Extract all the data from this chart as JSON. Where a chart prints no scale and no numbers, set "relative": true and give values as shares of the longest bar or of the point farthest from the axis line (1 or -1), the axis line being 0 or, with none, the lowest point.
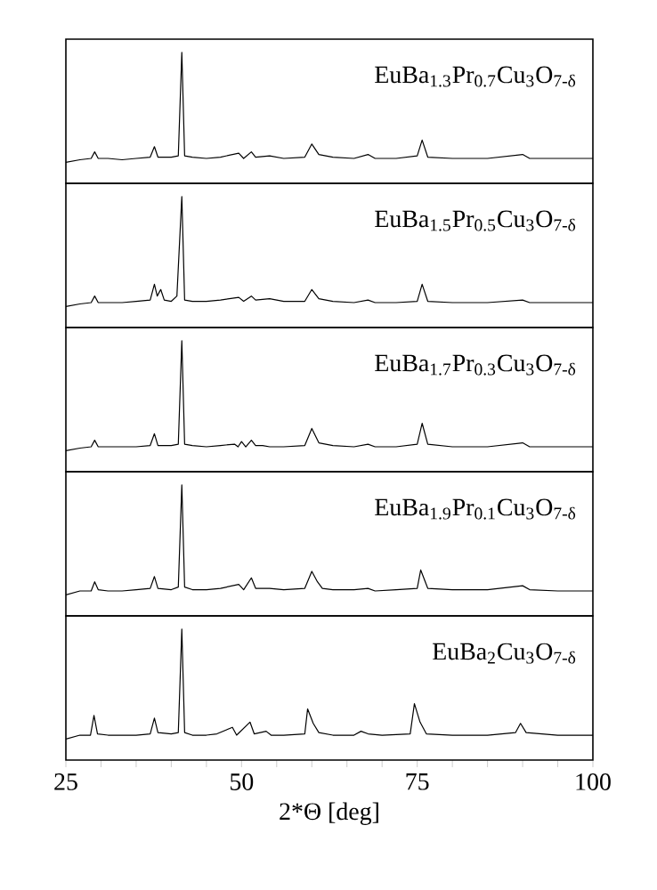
{
  "chart_data": [
    {
      "type": "line",
      "relative": true,
      "xlim": [
        25,
        100
      ],
      "tick_labels": false,
      "annotations": [
        "EuBa$_{1.3}$Pr$_{0.7}$Cu$_{3}$O$_{7-δ}$"
      ],
      "x": [
        25,
        27,
        28.6,
        29.1,
        29.6,
        31,
        33,
        35,
        37,
        37.6,
        38.1,
        40,
        41.0,
        41.5,
        41.9,
        43,
        45,
        47,
        49.6,
        50.3,
        51.4,
        52,
        54,
        56,
        59,
        60,
        61,
        63,
        66,
        68,
        69,
        72,
        75,
        75.7,
        76.5,
        80,
        85,
        90,
        91,
        95,
        100
      ],
      "values": [
        0.16,
        0.18,
        0.19,
        0.24,
        0.19,
        0.19,
        0.18,
        0.19,
        0.2,
        0.28,
        0.2,
        0.2,
        0.21,
        1,
        0.21,
        0.2,
        0.19,
        0.2,
        0.23,
        0.19,
        0.24,
        0.2,
        0.21,
        0.19,
        0.2,
        0.3,
        0.22,
        0.2,
        0.19,
        0.22,
        0.19,
        0.19,
        0.21,
        0.33,
        0.2,
        0.19,
        0.19,
        0.22,
        0.19,
        0.19,
        0.19
      ]
    },
    {
      "type": "line",
      "relative": true,
      "xlim": [
        25,
        100
      ],
      "tick_labels": false,
      "annotations": [
        "EuBa$_{1.5}$Pr$_{0.5}$Cu$_{3}$O$_{7-δ}$"
      ],
      "x": [
        25,
        27,
        28.6,
        29.1,
        29.6,
        31,
        33,
        35,
        37,
        37.6,
        38.0,
        38.5,
        39.0,
        40,
        40.8,
        41.5,
        41.9,
        43,
        45,
        47,
        49.6,
        50.3,
        51.4,
        52,
        54,
        56,
        59,
        60,
        61,
        63,
        66,
        68,
        69,
        72,
        75,
        75.7,
        76.5,
        80,
        85,
        90,
        91,
        95,
        100
      ],
      "values": [
        0.16,
        0.18,
        0.19,
        0.24,
        0.19,
        0.19,
        0.19,
        0.2,
        0.21,
        0.33,
        0.24,
        0.29,
        0.21,
        0.2,
        0.24,
        1,
        0.21,
        0.2,
        0.2,
        0.21,
        0.23,
        0.2,
        0.24,
        0.21,
        0.22,
        0.2,
        0.2,
        0.29,
        0.22,
        0.2,
        0.19,
        0.21,
        0.19,
        0.19,
        0.2,
        0.33,
        0.2,
        0.19,
        0.19,
        0.21,
        0.19,
        0.19,
        0.19
      ]
    },
    {
      "type": "line",
      "relative": true,
      "xlim": [
        25,
        100
      ],
      "tick_labels": false,
      "annotations": [
        "EuBa$_{1.7}$Pr$_{0.3}$Cu$_{3}$O$_{7-δ}$"
      ],
      "x": [
        25,
        27,
        28.6,
        29.1,
        29.6,
        31,
        33,
        35,
        37,
        37.6,
        38.1,
        40,
        41.0,
        41.5,
        41.9,
        43,
        45,
        47,
        49,
        49.5,
        50,
        50.6,
        51.4,
        52,
        53,
        54,
        56,
        59,
        60,
        61,
        63,
        66,
        68,
        69,
        72,
        75,
        75.7,
        76.5,
        80,
        85,
        90,
        91,
        95,
        100
      ],
      "values": [
        0.16,
        0.18,
        0.19,
        0.24,
        0.19,
        0.19,
        0.19,
        0.19,
        0.2,
        0.29,
        0.2,
        0.2,
        0.21,
        1,
        0.21,
        0.2,
        0.19,
        0.2,
        0.21,
        0.19,
        0.23,
        0.19,
        0.24,
        0.2,
        0.2,
        0.19,
        0.19,
        0.2,
        0.33,
        0.22,
        0.2,
        0.19,
        0.21,
        0.19,
        0.19,
        0.21,
        0.37,
        0.21,
        0.19,
        0.19,
        0.22,
        0.19,
        0.19,
        0.19
      ]
    },
    {
      "type": "line",
      "relative": true,
      "xlim": [
        25,
        100
      ],
      "tick_labels": false,
      "annotations": [
        "EuBa$_{1.9}$Pr$_{0.1}$Cu$_{3}$O$_{7-δ}$"
      ],
      "x": [
        25,
        27,
        28.6,
        29.1,
        29.6,
        31,
        33,
        35,
        37,
        37.6,
        38.1,
        40,
        41.0,
        41.5,
        41.9,
        43,
        45,
        47,
        49.6,
        50.3,
        51.4,
        52,
        54,
        56,
        59,
        60,
        60.8,
        61.5,
        63,
        66,
        68,
        69,
        72,
        75,
        75.5,
        76.5,
        80,
        85,
        90,
        91,
        95,
        100
      ],
      "values": [
        0.16,
        0.19,
        0.19,
        0.26,
        0.2,
        0.19,
        0.19,
        0.2,
        0.21,
        0.3,
        0.21,
        0.2,
        0.22,
        1,
        0.22,
        0.2,
        0.2,
        0.21,
        0.24,
        0.2,
        0.29,
        0.21,
        0.21,
        0.2,
        0.21,
        0.34,
        0.26,
        0.21,
        0.2,
        0.2,
        0.21,
        0.19,
        0.2,
        0.21,
        0.35,
        0.21,
        0.2,
        0.2,
        0.23,
        0.2,
        0.19,
        0.19
      ]
    },
    {
      "type": "line",
      "relative": true,
      "xlim": [
        25,
        100
      ],
      "tick_labels": "x",
      "xlabel": "2*Θ [deg]",
      "annotations": [
        "EuBa$_{2}$Cu$_{3}$O$_{7-δ}$"
      ],
      "xticks": [
        25,
        {
          "value": 30,
          "label": null
        },
        {
          "value": 35,
          "label": null
        },
        {
          "value": 40,
          "label": null
        },
        {
          "value": 45,
          "label": null
        },
        50,
        {
          "value": 55,
          "label": null
        },
        {
          "value": 60,
          "label": null
        },
        {
          "value": 65,
          "label": null
        },
        {
          "value": 70,
          "label": null
        },
        75,
        {
          "value": 80,
          "label": null
        },
        {
          "value": 85,
          "label": null
        },
        {
          "value": 90,
          "label": null
        },
        {
          "value": 95,
          "label": null
        },
        100
      ],
      "x": [
        25,
        27,
        28.5,
        29.0,
        29.5,
        31,
        33,
        35,
        37,
        37.6,
        38.1,
        40,
        41.0,
        41.5,
        41.9,
        43,
        45,
        46.5,
        48.7,
        49.3,
        51.2,
        51.8,
        53.5,
        54.2,
        56,
        59,
        59.4,
        60.2,
        61,
        63,
        66,
        67,
        68,
        70,
        74,
        74.6,
        75.4,
        76.3,
        80,
        85,
        89,
        89.7,
        90.5,
        95,
        100
      ],
      "values": [
        0.16,
        0.19,
        0.19,
        0.34,
        0.2,
        0.19,
        0.19,
        0.19,
        0.2,
        0.32,
        0.21,
        0.2,
        0.21,
        1,
        0.21,
        0.19,
        0.19,
        0.2,
        0.25,
        0.19,
        0.29,
        0.2,
        0.22,
        0.19,
        0.19,
        0.2,
        0.39,
        0.28,
        0.21,
        0.19,
        0.19,
        0.22,
        0.2,
        0.19,
        0.2,
        0.43,
        0.29,
        0.2,
        0.19,
        0.19,
        0.21,
        0.28,
        0.21,
        0.19,
        0.19
      ]
    }
  ]
}
